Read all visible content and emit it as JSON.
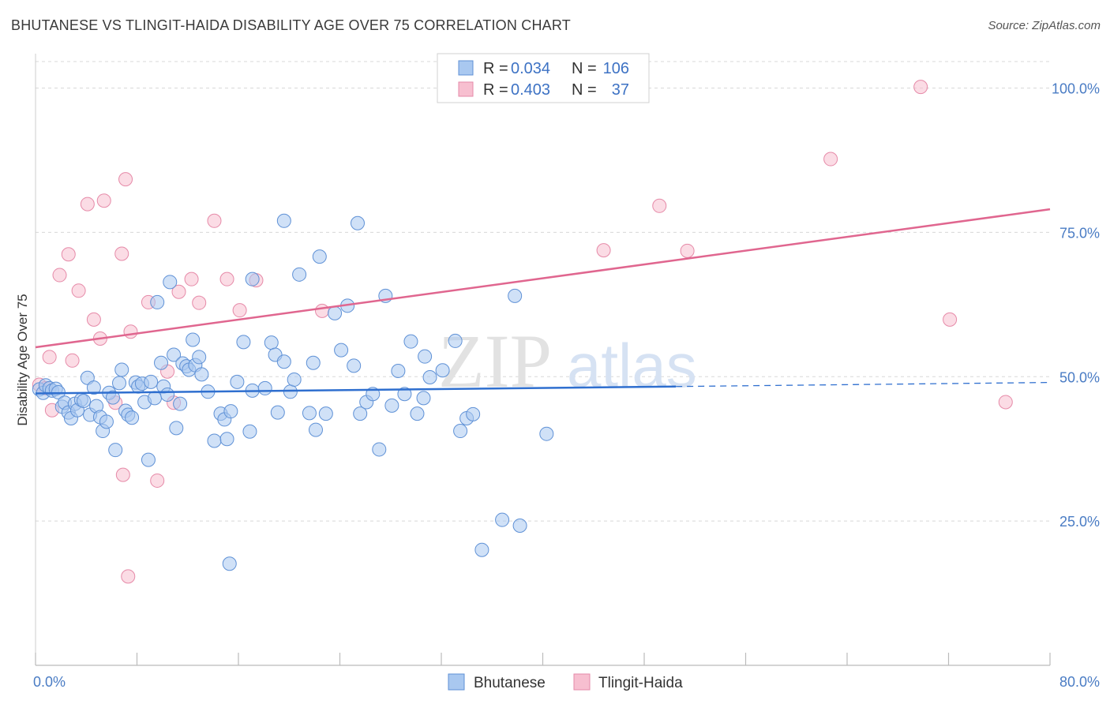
{
  "title": "BHUTANESE VS TLINGIT-HAIDA DISABILITY AGE OVER 75 CORRELATION CHART",
  "source": "Source: ZipAtlas.com",
  "watermark": {
    "zip": "ZIP",
    "atlas": "atlas"
  },
  "colors": {
    "bhutanese_fill": "#a9c8f0",
    "bhutanese_stroke": "#5f91d6",
    "bhutanese_line": "#2f6fcf",
    "tlingit_fill": "#f7bfd0",
    "tlingit_stroke": "#e68aa8",
    "tlingit_line": "#e0668f",
    "tick": "#4a7cc4",
    "grid": "#d8d8d8"
  },
  "legend": {
    "rows": [
      {
        "r_label": "R = ",
        "r_value": "0.034",
        "n_label": "N = ",
        "n_value": "106"
      },
      {
        "r_label": "R = ",
        "r_value": "0.403",
        "n_label": "N = ",
        "n_value": "37"
      }
    ]
  },
  "chart_data": {
    "type": "scatter",
    "xlabel": "",
    "ylabel": "Disability Age Over 75",
    "xlim": [
      0,
      80
    ],
    "ylim": [
      0,
      105
    ],
    "x_tick_labels": [
      "0.0%",
      "80.0%"
    ],
    "y_ticks": [
      25,
      50,
      75,
      100
    ],
    "y_tick_labels": [
      "25.0%",
      "50.0%",
      "75.0%",
      "100.0%"
    ],
    "grid": true,
    "series": [
      {
        "name": "Bhutanese",
        "points": [
          [
            0.3,
            47.8
          ],
          [
            0.6,
            47.2
          ],
          [
            0.8,
            48.5
          ],
          [
            1.1,
            48.0
          ],
          [
            1.3,
            47.6
          ],
          [
            1.6,
            47.9
          ],
          [
            1.8,
            47.3
          ],
          [
            2.1,
            44.8
          ],
          [
            2.3,
            45.5
          ],
          [
            2.6,
            43.8
          ],
          [
            2.8,
            42.8
          ],
          [
            3.1,
            45.3
          ],
          [
            3.3,
            44.2
          ],
          [
            3.6,
            46.0
          ],
          [
            3.8,
            45.8
          ],
          [
            4.1,
            49.8
          ],
          [
            4.3,
            43.4
          ],
          [
            4.6,
            48.1
          ],
          [
            4.8,
            44.9
          ],
          [
            5.1,
            43.0
          ],
          [
            5.3,
            40.6
          ],
          [
            5.6,
            42.2
          ],
          [
            5.8,
            47.2
          ],
          [
            6.1,
            46.4
          ],
          [
            6.3,
            37.3
          ],
          [
            6.6,
            48.9
          ],
          [
            6.8,
            51.2
          ],
          [
            7.1,
            44.1
          ],
          [
            7.3,
            43.4
          ],
          [
            7.6,
            42.9
          ],
          [
            7.9,
            49.0
          ],
          [
            8.1,
            48.3
          ],
          [
            8.4,
            48.8
          ],
          [
            8.6,
            45.6
          ],
          [
            8.9,
            35.6
          ],
          [
            9.1,
            49.1
          ],
          [
            9.4,
            46.3
          ],
          [
            9.6,
            62.9
          ],
          [
            9.9,
            52.4
          ],
          [
            10.1,
            48.3
          ],
          [
            10.4,
            46.9
          ],
          [
            10.6,
            66.4
          ],
          [
            10.9,
            53.8
          ],
          [
            11.1,
            41.1
          ],
          [
            11.4,
            45.3
          ],
          [
            11.6,
            52.3
          ],
          [
            11.9,
            51.8
          ],
          [
            12.1,
            51.2
          ],
          [
            12.4,
            56.4
          ],
          [
            12.6,
            52.0
          ],
          [
            12.9,
            53.4
          ],
          [
            13.1,
            50.4
          ],
          [
            13.6,
            47.4
          ],
          [
            14.1,
            38.9
          ],
          [
            14.6,
            43.6
          ],
          [
            14.9,
            42.6
          ],
          [
            15.1,
            39.2
          ],
          [
            15.4,
            44.0
          ],
          [
            15.9,
            49.1
          ],
          [
            16.4,
            56.0
          ],
          [
            16.9,
            40.5
          ],
          [
            17.1,
            47.6
          ],
          [
            18.1,
            48.0
          ],
          [
            18.6,
            55.9
          ],
          [
            18.9,
            53.8
          ],
          [
            19.1,
            43.8
          ],
          [
            19.6,
            52.6
          ],
          [
            20.1,
            47.4
          ],
          [
            20.4,
            49.5
          ],
          [
            21.6,
            43.7
          ],
          [
            21.9,
            52.4
          ],
          [
            22.1,
            40.8
          ],
          [
            22.9,
            43.6
          ],
          [
            23.6,
            61.0
          ],
          [
            24.1,
            54.6
          ],
          [
            24.6,
            62.3
          ],
          [
            25.1,
            51.9
          ],
          [
            25.6,
            43.6
          ],
          [
            26.1,
            45.6
          ],
          [
            26.6,
            47.0
          ],
          [
            27.1,
            37.4
          ],
          [
            27.6,
            64.0
          ],
          [
            28.1,
            45.0
          ],
          [
            28.6,
            51.0
          ],
          [
            29.1,
            47.0
          ],
          [
            29.6,
            56.1
          ],
          [
            30.1,
            43.6
          ],
          [
            30.6,
            46.3
          ],
          [
            31.1,
            49.9
          ],
          [
            32.1,
            51.1
          ],
          [
            33.1,
            56.2
          ],
          [
            33.5,
            40.6
          ],
          [
            34.0,
            42.8
          ],
          [
            34.5,
            43.5
          ],
          [
            35.2,
            20.0
          ],
          [
            36.8,
            25.2
          ],
          [
            38.2,
            24.2
          ],
          [
            40.3,
            40.1
          ],
          [
            17.1,
            66.9
          ],
          [
            19.6,
            77.0
          ],
          [
            20.8,
            67.7
          ],
          [
            22.4,
            70.8
          ],
          [
            37.8,
            64.0
          ],
          [
            15.3,
            17.6
          ],
          [
            25.4,
            76.6
          ],
          [
            30.7,
            53.5
          ]
        ]
      },
      {
        "name": "Tlingit-Haida",
        "points": [
          [
            0.3,
            48.6
          ],
          [
            0.8,
            48.0
          ],
          [
            1.1,
            53.4
          ],
          [
            1.3,
            44.2
          ],
          [
            1.9,
            67.6
          ],
          [
            2.6,
            71.2
          ],
          [
            3.4,
            64.9
          ],
          [
            4.1,
            79.9
          ],
          [
            4.6,
            59.9
          ],
          [
            5.4,
            80.5
          ],
          [
            6.3,
            45.5
          ],
          [
            6.8,
            71.3
          ],
          [
            7.5,
            57.8
          ],
          [
            8.9,
            62.9
          ],
          [
            9.6,
            32.0
          ],
          [
            10.4,
            50.9
          ],
          [
            10.9,
            45.5
          ],
          [
            11.3,
            64.7
          ],
          [
            12.3,
            66.9
          ],
          [
            12.9,
            62.8
          ],
          [
            14.1,
            77.0
          ],
          [
            15.1,
            66.9
          ],
          [
            16.1,
            61.5
          ],
          [
            17.4,
            66.7
          ],
          [
            2.9,
            52.8
          ],
          [
            5.1,
            56.6
          ],
          [
            7.1,
            84.2
          ],
          [
            6.9,
            33.0
          ],
          [
            7.3,
            15.4
          ],
          [
            22.6,
            61.4
          ],
          [
            44.8,
            71.9
          ],
          [
            49.2,
            79.6
          ],
          [
            51.4,
            71.8
          ],
          [
            62.7,
            87.7
          ],
          [
            69.8,
            100.2
          ],
          [
            72.1,
            59.9
          ],
          [
            76.5,
            45.6
          ]
        ]
      }
    ],
    "trend_lines": [
      {
        "series": "Bhutanese",
        "x": [
          0,
          50.5
        ],
        "y": [
          47.1,
          48.3
        ],
        "dashed_extension_to_x": 80
      },
      {
        "series": "Tlingit-Haida",
        "x": [
          0,
          80
        ],
        "y": [
          55.1,
          79.0
        ]
      }
    ]
  }
}
